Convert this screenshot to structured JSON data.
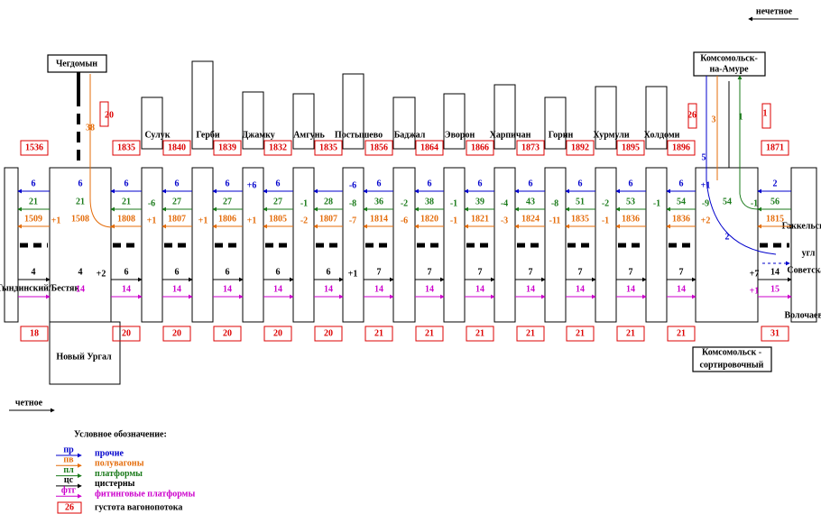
{
  "direction_labels": {
    "odd": "нечетное",
    "even": "четное"
  },
  "stations": {
    "chegdomyn": "Чегдомын",
    "novy_urgal": "Новый Ургал",
    "komsomolsk": [
      "Комсомольск-",
      "на-Амуре"
    ],
    "komsomolsk_sort": [
      "Комсомольск -",
      "сортировочный"
    ]
  },
  "intermediate_stations": [
    "Сулук",
    "Герби",
    "Джамку",
    "Амгунь",
    "Постышево",
    "Баджал",
    "Эворон",
    "Харпичан",
    "Горин",
    "Хурмули",
    "Холдоми"
  ],
  "junction_labels": {
    "left": "Тындинский/Бестяк",
    "right": [
      "Гаккельский",
      "угл",
      "Советская",
      "Волочаевка"
    ]
  },
  "odd_density": [
    1536,
    1835,
    1840,
    1839,
    1832,
    1835,
    1856,
    1864,
    1866,
    1873,
    1892,
    1895,
    1896,
    1871
  ],
  "even_density": [
    18,
    20,
    20,
    20,
    20,
    20,
    21,
    21,
    21,
    21,
    21,
    21,
    21,
    31
  ],
  "side_labels": {
    "chegdomyn_flow": "38",
    "chegdomyn_box": "20",
    "komsomolsk_box": "26",
    "right_box": "1",
    "branch": [
      "5",
      "3",
      "1",
      "2"
    ]
  },
  "segments": [
    {
      "pr": 6,
      "pl": 21,
      "pv": 1509,
      "cs": 4
    },
    {
      "pr": 6,
      "pl": 21,
      "pv": 1508,
      "cs": 4,
      "ft": 14
    },
    {
      "pr": 6,
      "pl": 21,
      "pv": 1808,
      "cs": 6,
      "ft": 14
    },
    {
      "pr": 6,
      "pl": 27,
      "pv": 1807,
      "cs": 6,
      "ft": 14
    },
    {
      "pr": 6,
      "pl": 27,
      "pv": 1806,
      "cs": 6,
      "ft": 14
    },
    {
      "pr": 6,
      "pl": 27,
      "pv": 1805,
      "cs": 6,
      "ft": 14
    },
    {
      "pl": 28,
      "pv": 1807,
      "cs": 6,
      "ft": 14
    },
    {
      "pr": 6,
      "pl": 36,
      "pv": 1814,
      "cs": 7,
      "ft": 14
    },
    {
      "pr": 6,
      "pl": 38,
      "pv": 1820,
      "cs": 7,
      "ft": 14
    },
    {
      "pr": 6,
      "pl": 39,
      "pv": 1821,
      "cs": 7,
      "ft": 14
    },
    {
      "pr": 6,
      "pl": 43,
      "pv": 1824,
      "cs": 7,
      "ft": 14
    },
    {
      "pr": 6,
      "pl": 51,
      "pv": 1835,
      "cs": 7,
      "ft": 14
    },
    {
      "pr": 6,
      "pl": 53,
      "pv": 1836,
      "cs": 7,
      "ft": 14
    },
    {
      "pr": 6,
      "pl": 54,
      "pv": 1836,
      "cs": 7,
      "ft": 14
    },
    {
      "pl": 54
    },
    {
      "pr": 2,
      "pl": 56,
      "pv": 1815,
      "cs": 14,
      "ft": 15
    }
  ],
  "changes": [
    {
      "pv": "+1"
    },
    {
      "cs": "+2"
    },
    {
      "pl": "-6",
      "pv": "+1"
    },
    {
      "pv": "+1"
    },
    {
      "pr": "+6",
      "pv": "+1"
    },
    {
      "pl": "-1",
      "pv": "-2"
    },
    {
      "pr": "-6",
      "pl": "-8",
      "pv": "-7",
      "cs": "+1"
    },
    {
      "pl": "-2",
      "pv": "-6"
    },
    {
      "pl": "-1",
      "pv": "-1"
    },
    {
      "pl": "-4",
      "pv": "-3"
    },
    {
      "pl": "-8",
      "pv": "-11"
    },
    {
      "pl": "-2",
      "pv": "-1"
    },
    {
      "pl": "-1"
    },
    {
      "pr": "+1",
      "pl": "-9",
      "pv": "+2"
    },
    {
      "pl": "-1",
      "cs": "+7",
      "ft": "+1"
    }
  ],
  "legend": {
    "title": "Условное обозначение:",
    "items": [
      {
        "key": "пр",
        "label": "прочие"
      },
      {
        "key": "пв",
        "label": "полувагоны"
      },
      {
        "key": "пл",
        "label": "платформы"
      },
      {
        "key": "цс",
        "label": "цистерны"
      },
      {
        "key": "фтг",
        "label": "фитинговые платформы"
      }
    ],
    "density": {
      "key": "26",
      "label": "густота вагонопотока"
    }
  }
}
